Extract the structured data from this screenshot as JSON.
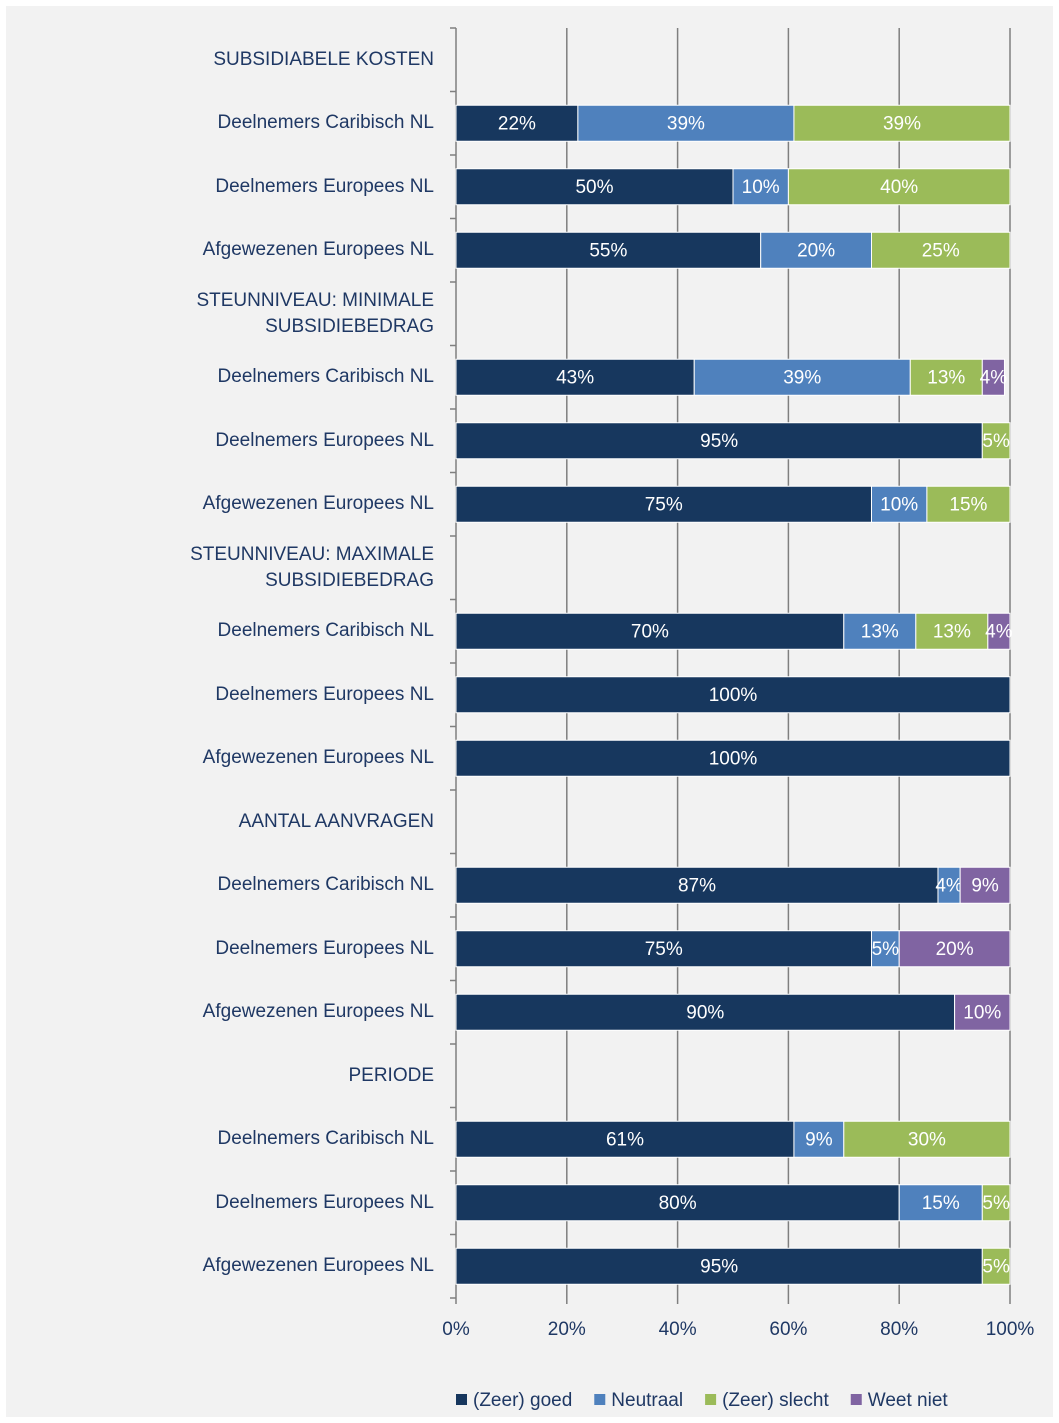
{
  "chart_data": {
    "type": "stacked-barh",
    "categories": [
      "SUBSIDIABELE KOSTEN",
      "Deelnemers Caribisch NL",
      "Deelnemers Europees NL",
      "Afgewezenen Europees NL",
      "STEUNNIVEAU: MINIMALE SUBSIDIEBEDRAG",
      "Deelnemers Caribisch NL",
      "Deelnemers Europees NL",
      "Afgewezenen Europees NL",
      "STEUNNIVEAU: MAXIMALE SUBSIDIEBEDRAG",
      "Deelnemers Caribisch NL",
      "Deelnemers Europees NL",
      "Afgewezenen Europees NL",
      "AANTAL AANVRAGEN",
      "Deelnemers Caribisch NL",
      "Deelnemers Europees NL",
      "Afgewezenen Europees NL",
      "PERIODE",
      "Deelnemers Caribisch NL",
      "Deelnemers Europees NL",
      "Afgewezenen Europees NL"
    ],
    "series": [
      {
        "name": "(Zeer) goed",
        "color": "#17375e",
        "values": [
          null,
          22,
          50,
          55,
          null,
          43,
          95,
          75,
          null,
          70,
          100,
          100,
          null,
          87,
          75,
          90,
          null,
          61,
          80,
          95
        ],
        "value_labels": [
          null,
          "22%",
          "50%",
          "55%",
          null,
          "43%",
          "95%",
          "75%",
          null,
          "70%",
          "100%",
          "100%",
          null,
          "87%",
          "75%",
          "90%",
          null,
          "61%",
          "80%",
          "95%"
        ]
      },
      {
        "name": "Neutraal",
        "color": "#4f81bd",
        "values": [
          null,
          39,
          10,
          20,
          null,
          39,
          null,
          10,
          null,
          13,
          null,
          null,
          null,
          4,
          5,
          null,
          null,
          9,
          15,
          null
        ],
        "value_labels": [
          null,
          "39%",
          "10%",
          "20%",
          null,
          "39%",
          null,
          "10%",
          null,
          "13%",
          null,
          null,
          null,
          "4%",
          "5%",
          null,
          null,
          "9%",
          "15%",
          null
        ]
      },
      {
        "name": "(Zeer) slecht",
        "color": "#9bbb59",
        "values": [
          null,
          39,
          40,
          25,
          null,
          13,
          5,
          15,
          null,
          13,
          null,
          null,
          null,
          null,
          null,
          null,
          null,
          30,
          5,
          5
        ],
        "value_labels": [
          null,
          "39%",
          "40%",
          "25%",
          null,
          "13%",
          "5%",
          "15%",
          null,
          "13%",
          null,
          null,
          null,
          null,
          null,
          null,
          null,
          "30%",
          "5%",
          "5%"
        ]
      },
      {
        "name": "Weet niet",
        "color": "#8064a2",
        "values": [
          null,
          null,
          null,
          null,
          null,
          4,
          null,
          null,
          null,
          4,
          null,
          null,
          null,
          9,
          20,
          10,
          null,
          null,
          null,
          null
        ],
        "value_labels": [
          null,
          null,
          null,
          null,
          null,
          "4%",
          null,
          null,
          null,
          "4%",
          null,
          null,
          null,
          "9%",
          "20%",
          "10%",
          null,
          null,
          null,
          null
        ]
      }
    ],
    "xlim": [
      0,
      100
    ],
    "xticks": [
      {
        "value": 0,
        "label": "0%"
      },
      {
        "value": 20,
        "label": "20%"
      },
      {
        "value": 40,
        "label": "40%"
      },
      {
        "value": 60,
        "label": "60%"
      },
      {
        "value": 80,
        "label": "80%"
      },
      {
        "value": 100,
        "label": "100%"
      }
    ],
    "grid": true,
    "legend": "bottom"
  }
}
